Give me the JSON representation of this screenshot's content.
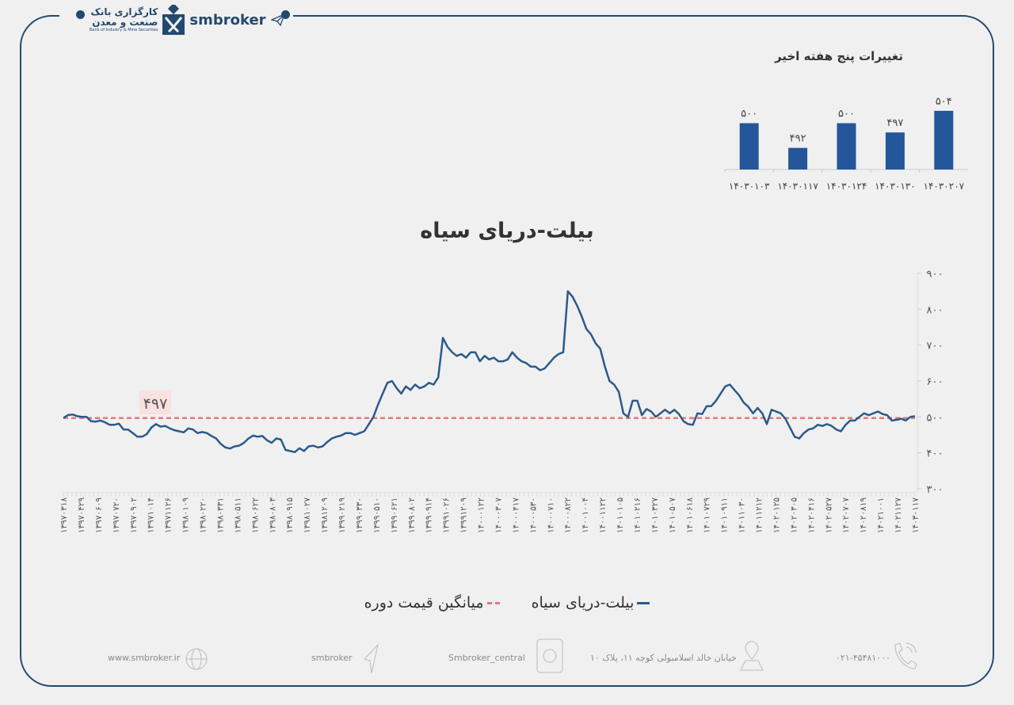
{
  "header": {
    "logo_fa_line1": "کارگزاری بانک",
    "logo_fa_line2": "صنعت و معدن",
    "logo_en": "Bank of Industry & Mine Securities",
    "brand": "smbroker"
  },
  "colors": {
    "frame": "#24496e",
    "bar": "#24569a",
    "line": "#2a5a8c",
    "mean": "#e8777a"
  },
  "chart_data": [
    {
      "type": "bar",
      "title": "تغییرات پنج هفته اخیر",
      "categories": [
        "۱۴۰۳۰۱۰۳",
        "۱۴۰۳۰۱۱۷",
        "۱۴۰۳۰۱۲۴",
        "۱۴۰۳۰۱۳۰",
        "۱۴۰۳۰۲۰۷"
      ],
      "values": [
        500,
        492,
        500,
        497,
        504
      ],
      "value_labels": [
        "۵۰۰",
        "۴۹۲",
        "۵۰۰",
        "۴۹۷",
        "۵۰۴"
      ]
    },
    {
      "type": "line",
      "title": "بیلت-دریای سیاه",
      "ylim": [
        300,
        900
      ],
      "yticks": [
        "۳۰۰",
        "۴۰۰",
        "۵۰۰",
        "۶۰۰",
        "۷۰۰",
        "۸۰۰",
        "۹۰۰"
      ],
      "ytick_values": [
        300,
        400,
        500,
        600,
        700,
        800,
        900
      ],
      "xtick_labels": [
        "۱۳۹۷۰۳۱۸",
        "۱۳۹۷۰۴۲۹",
        "۱۳۹۷۰۶۰۹",
        "۱۳۹۷۰۷۲۰",
        "۱۳۹۷۰۹۰۲",
        "۱۳۹۷۱۰۱۴",
        "۱۳۹۷۱۱۲۶",
        "۱۳۹۸۰۱۰۹",
        "۱۳۹۸۰۲۲۰",
        "۱۳۹۸۰۳۳۱",
        "۱۳۹۸۰۵۱۱",
        "۱۳۹۸۰۶۲۲",
        "۱۳۹۸۰۸۰۳",
        "۱۳۹۸۰۹۱۵",
        "۱۳۹۸۱۰۲۷",
        "۱۳۹۸۱۲۰۹",
        "۱۳۹۹۰۲۱۹",
        "۱۳۹۹۰۳۳۰",
        "۱۳۹۹۰۵۱۰",
        "۱۳۹۹۰۶۲۱",
        "۱۳۹۹۰۸۰۲",
        "۱۳۹۹۰۹۱۴",
        "۱۳۹۹۱۰۲۶",
        "۱۳۹۹۱۲۰۹",
        "۱۴۰۰۰۱۲۲",
        "۱۴۰۰۰۳۰۷",
        "۱۴۰۰۰۴۱۷",
        "۱۴۰۰۰۵۳۰",
        "۱۴۰۰۰۷۱۰",
        "۱۴۰۰۰۸۲۲",
        "۱۴۰۰۱۰۰۴",
        "۱۴۰۰۱۱۲۲",
        "۱۴۰۱۰۱۰۵",
        "۱۴۰۱۰۲۱۶",
        "۱۴۰۱۰۳۲۷",
        "۱۴۰۱۰۵۰۷",
        "۱۴۰۱۰۶۱۸",
        "۱۴۰۱۰۷۲۹",
        "۱۴۰۱۰۹۱۱",
        "۱۴۰۱۱۰۳۰",
        "۱۴۰۱۱۲۱۲",
        "۱۴۰۲۰۱۲۵",
        "۱۴۰۲۰۳۰۵",
        "۱۴۰۲۰۴۱۶",
        "۱۴۰۲۰۵۲۷",
        "۱۴۰۲۰۷۰۷",
        "۱۴۰۲۰۸۱۹",
        "۱۴۰۲۱۰۰۱",
        "۱۴۰۲۱۱۲۷",
        "۱۴۰۳۰۱۱۷"
      ],
      "series": [
        {
          "name": "بیلت-دریای سیاه",
          "style": "solid",
          "values": [
            497,
            505,
            507,
            502,
            500,
            500,
            488,
            487,
            490,
            485,
            478,
            478,
            481,
            465,
            465,
            455,
            445,
            445,
            452,
            470,
            480,
            473,
            475,
            468,
            463,
            460,
            457,
            468,
            465,
            455,
            458,
            455,
            447,
            440,
            425,
            415,
            412,
            418,
            420,
            428,
            440,
            448,
            445,
            447,
            435,
            428,
            440,
            437,
            408,
            405,
            402,
            413,
            405,
            418,
            420,
            415,
            418,
            430,
            440,
            445,
            448,
            455,
            455,
            450,
            455,
            460,
            480,
            500,
            535,
            565,
            595,
            600,
            580,
            565,
            585,
            575,
            590,
            580,
            585,
            595,
            590,
            610,
            720,
            695,
            680,
            670,
            675,
            665,
            680,
            680,
            655,
            670,
            660,
            665,
            655,
            655,
            660,
            680,
            665,
            655,
            650,
            640,
            640,
            630,
            635,
            650,
            665,
            675,
            680,
            850,
            835,
            810,
            780,
            745,
            730,
            705,
            690,
            640,
            600,
            590,
            570,
            510,
            500,
            545,
            545,
            505,
            522,
            515,
            500,
            510,
            520,
            510,
            520,
            508,
            488,
            480,
            478,
            510,
            508,
            530,
            530,
            545,
            565,
            585,
            590,
            575,
            560,
            540,
            528,
            510,
            525,
            510,
            480,
            520,
            515,
            510,
            495,
            470,
            445,
            440,
            455,
            465,
            468,
            478,
            475,
            480,
            475,
            465,
            460,
            478,
            490,
            490,
            500,
            510,
            505,
            510,
            515,
            508,
            505,
            490,
            492,
            495,
            490,
            500,
            502
          ]
        },
        {
          "name": "میانگین قیمت دوره",
          "style": "dashed",
          "value": 497,
          "label": "۴۹۷"
        }
      ],
      "legend_position": "bottom",
      "grid": false
    }
  ],
  "footer": {
    "website": "www.smbroker.ir",
    "telegram": "smbroker",
    "instagram": "Smbroker_central",
    "address": "خیابان خالد اسلامبولی کوچه ۱۱، پلاک ۱۰",
    "phone": "۰۲۱-۴۵۴۸۱۰۰۰"
  }
}
